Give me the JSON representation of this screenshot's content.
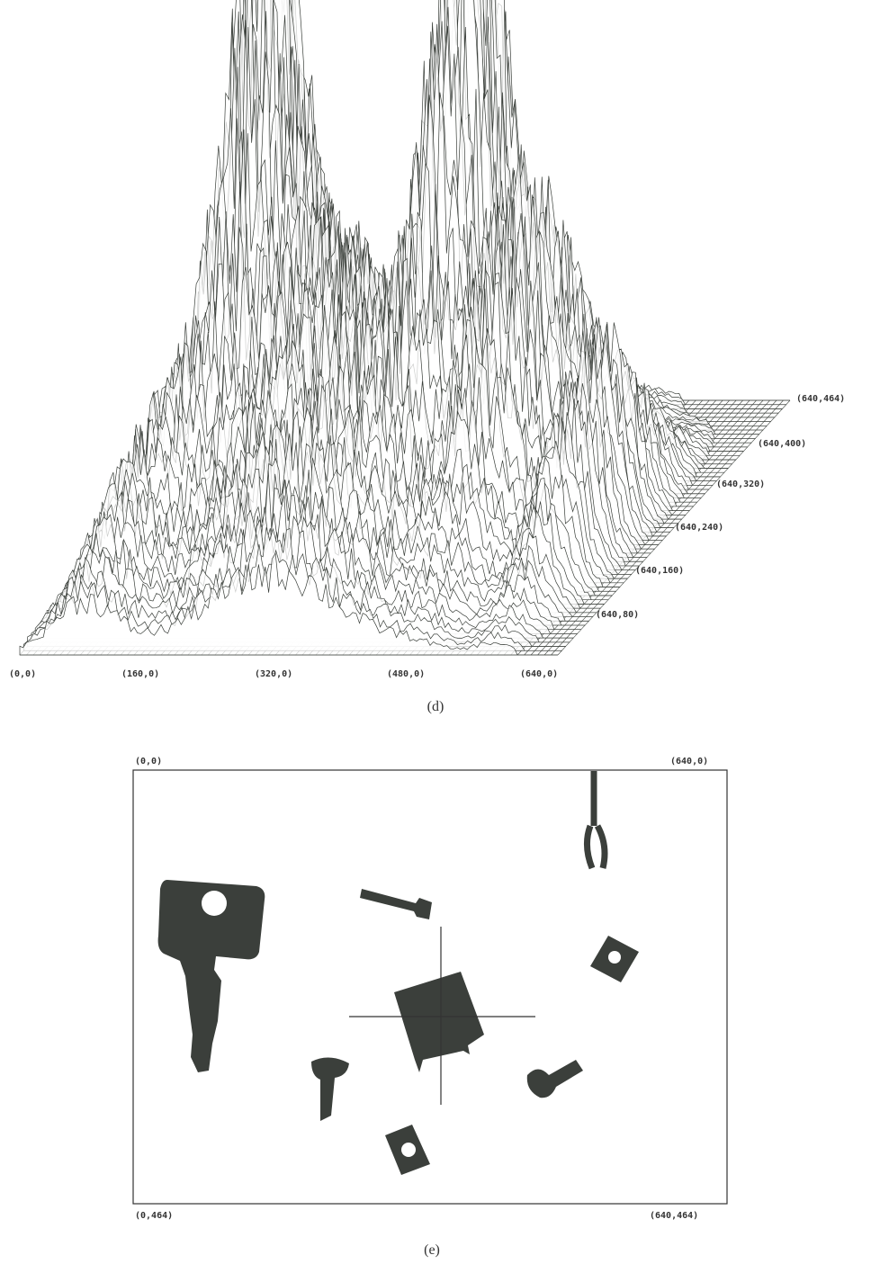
{
  "figure_d": {
    "front_labels": [
      "(0,0)",
      "(160,0)",
      "(320,0)",
      "(480,0)",
      "(640,0)"
    ],
    "side_labels": [
      "(640,80)",
      "(640,160)",
      "(640,240)",
      "(640,320)",
      "(640,400)",
      "(640,464)"
    ],
    "caption": "(d)"
  },
  "figure_e": {
    "top_left": "(0,0)",
    "top_right": "(640,0)",
    "bottom_left": "(0,464)",
    "bottom_right": "(640,464)",
    "caption": "(e)"
  }
}
